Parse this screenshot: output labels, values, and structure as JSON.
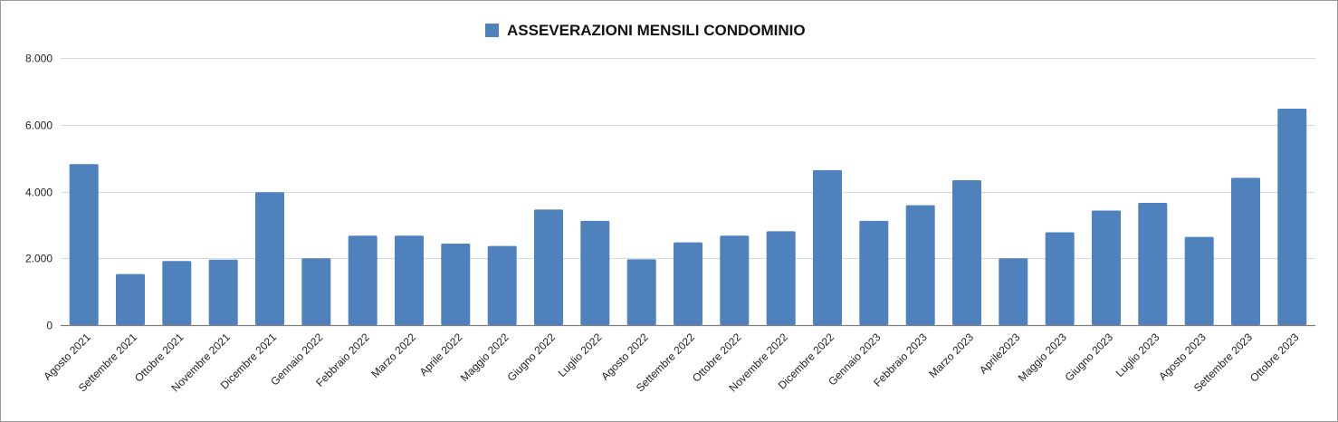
{
  "chart_data": {
    "type": "bar",
    "title": "",
    "xlabel": "",
    "ylabel": "",
    "ylim": [
      0,
      8000
    ],
    "yticks": [
      0,
      2000,
      4000,
      6000,
      8000
    ],
    "ytick_labels": [
      "0",
      "2.000",
      "4.000",
      "6.000",
      "8.000"
    ],
    "grid": true,
    "legend_position": "top-center",
    "categories": [
      "Agosto 2021",
      "Settembre 2021",
      "Ottobre 2021",
      "Novembre 2021",
      "Dicembre 2021",
      "Gennaio 2022",
      "Febbraio 2022",
      "Marzo 2022",
      "Aprile 2022",
      "Maggio 2022",
      "Giugno 2022",
      "Luglio 2022",
      "Agosto 2022",
      "Settembre 2022",
      "Ottobre 2022",
      "Novembre 2022",
      "Dicembre 2022",
      "Gennaio 2023",
      "Febbraio 2023",
      "Marzo 2023",
      "Aprile2023",
      "Maggio 2023",
      "Giugno 2023",
      "Luglio 2023",
      "Agosto 2023",
      "Settembre 2023",
      "Ottobre 2023"
    ],
    "series": [
      {
        "name": "ASSEVERAZIONI MENSILI CONDOMINIO",
        "color": "#4f81bd",
        "values": [
          4820,
          1530,
          1920,
          1960,
          3980,
          2000,
          2680,
          2680,
          2440,
          2370,
          3460,
          3120,
          1970,
          2480,
          2680,
          2810,
          4640,
          3120,
          3590,
          4340,
          2000,
          2780,
          3430,
          3660,
          2640,
          4410,
          6480
        ]
      }
    ]
  }
}
